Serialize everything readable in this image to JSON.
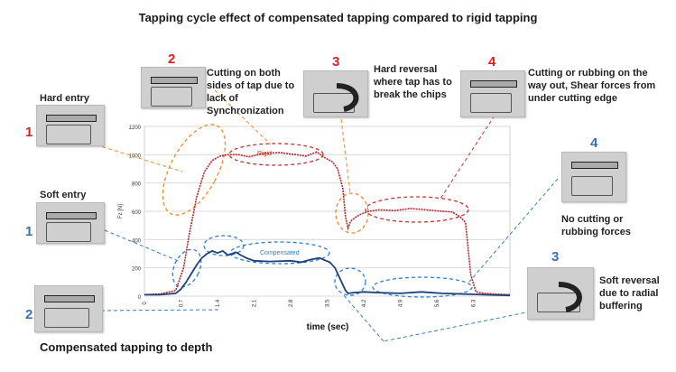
{
  "title": "Tapping cycle effect of compensated tapping compared to rigid tapping",
  "footer": "Compensated tapping to depth",
  "annotations": {
    "red_1_num": "1",
    "red_1_label": "Hard entry",
    "red_2_num": "2",
    "red_2_label": "Cutting on both sides of tap due to lack of Synchronization",
    "red_3_num": "3",
    "red_3_label": "Hard reversal where tap has to break the chips",
    "red_4_num": "4",
    "red_4_label": "Cutting or rubbing on the way out, Shear forces from under cutting edge",
    "blue_1_num": "1",
    "blue_1_label": "Soft entry",
    "blue_2_num": "2",
    "blue_3_num": "3",
    "blue_3_label": "Soft reversal due to radial buffering",
    "blue_4_num": "4",
    "blue_4_label": "No cutting or rubbing forces"
  },
  "colors": {
    "rigid": "#b3262d",
    "compensated": "#1f3f7a",
    "red_ellipse": "#c0392b",
    "orange_ellipse": "#f08a2a",
    "blue_ellipse": "#2f7fd0"
  },
  "chart_data": {
    "type": "line",
    "xlabel": "time (sec)",
    "ylabel": "Fz [N]",
    "xlim": [
      0,
      7
    ],
    "ylim": [
      0,
      1200
    ],
    "x_ticks": [
      "0",
      "0.7",
      "1.4",
      "2.1",
      "2.8",
      "3.5",
      "4.2",
      "4.9",
      "5.6",
      "6.3"
    ],
    "y_ticks": [
      "0",
      "200",
      "400",
      "600",
      "800",
      "1000",
      "1200"
    ],
    "grid": true,
    "series": [
      {
        "name": "Rigid",
        "x": [
          0,
          0.3,
          0.6,
          0.75,
          0.85,
          1.0,
          1.15,
          1.3,
          1.45,
          1.6,
          1.8,
          2.0,
          2.3,
          2.6,
          2.9,
          3.1,
          3.3,
          3.45,
          3.6,
          3.7,
          3.8,
          3.85,
          3.9,
          3.95,
          4.05,
          4.15,
          4.3,
          4.5,
          4.8,
          5.1,
          5.4,
          5.7,
          5.9,
          6.05,
          6.15,
          6.25,
          6.35,
          6.5,
          7.0
        ],
        "values": [
          10,
          15,
          40,
          200,
          420,
          700,
          880,
          960,
          990,
          1000,
          1000,
          985,
          1010,
          1015,
          1000,
          990,
          1020,
          980,
          950,
          900,
          760,
          560,
          480,
          530,
          560,
          580,
          600,
          610,
          605,
          620,
          610,
          600,
          595,
          560,
          520,
          150,
          30,
          20,
          10
        ]
      },
      {
        "name": "Compensated",
        "x": [
          0,
          0.3,
          0.6,
          0.7,
          0.8,
          0.9,
          1.0,
          1.1,
          1.2,
          1.3,
          1.4,
          1.5,
          1.6,
          1.75,
          1.85,
          1.95,
          2.1,
          2.4,
          2.8,
          3.0,
          3.2,
          3.35,
          3.45,
          3.55,
          3.65,
          3.75,
          3.85,
          3.9,
          4.0,
          4.2,
          4.5,
          4.9,
          5.3,
          5.7,
          6.1,
          6.5,
          7.0
        ],
        "values": [
          10,
          10,
          20,
          50,
          100,
          160,
          220,
          270,
          300,
          320,
          305,
          320,
          290,
          310,
          290,
          270,
          250,
          245,
          250,
          240,
          260,
          270,
          255,
          240,
          200,
          120,
          40,
          20,
          25,
          30,
          25,
          20,
          30,
          20,
          15,
          10,
          5
        ]
      }
    ]
  }
}
